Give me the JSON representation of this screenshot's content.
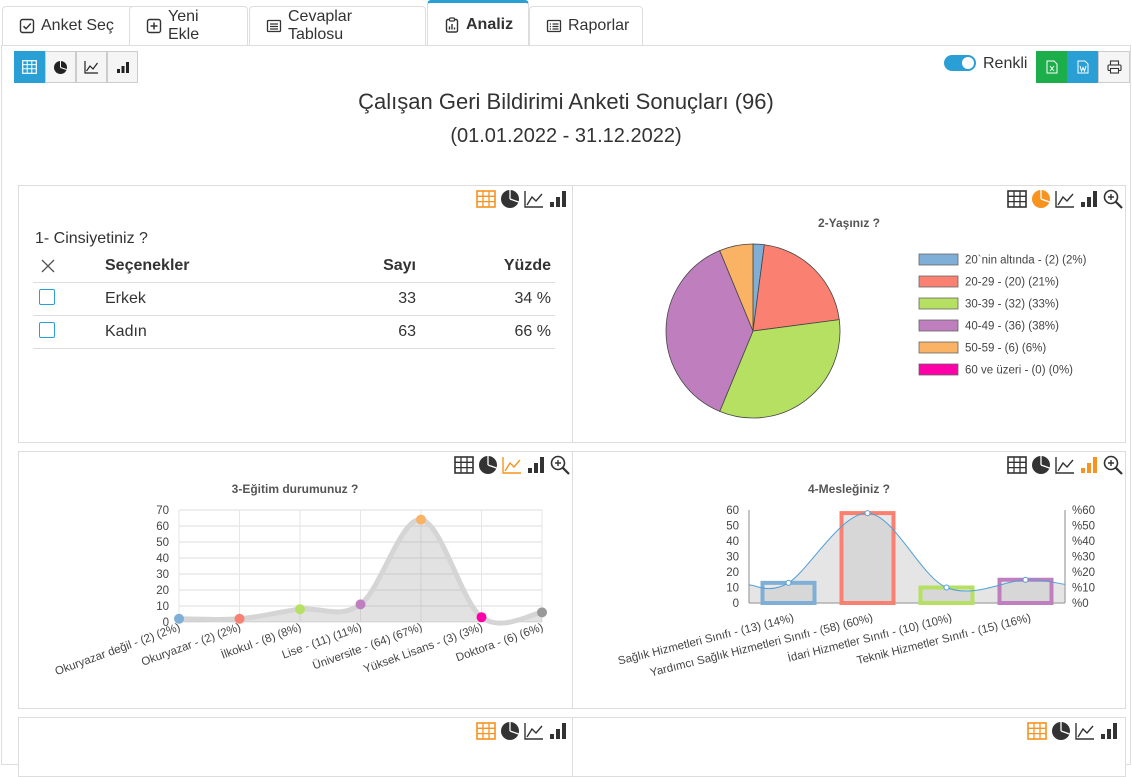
{
  "tabs": [
    {
      "label": "Anket Seç",
      "icon": "check-square-icon"
    },
    {
      "label": "Yeni Ekle",
      "icon": "plus-square-icon"
    },
    {
      "label": "Cevaplar Tablosu",
      "icon": "list-icon"
    },
    {
      "label": "Analiz",
      "icon": "clipboard-chart-icon"
    },
    {
      "label": "Raporlar",
      "icon": "report-list-icon"
    }
  ],
  "toolbar": {
    "view_buttons": [
      "table-view-icon",
      "pie-view-icon",
      "line-view-icon",
      "bar-view-icon"
    ],
    "colorful_label": "Renkli",
    "export_buttons": [
      "excel-icon",
      "word-icon",
      "print-icon"
    ]
  },
  "colors": {
    "accent": "#2a9fd6",
    "orange": "#f7931e",
    "excel": "#1cae4a"
  },
  "header": {
    "title": "Çalışan Geri Bildirimi Anketi Sonuçları (96)",
    "date_range": "(01.01.2022 - 31.12.2022)"
  },
  "q1": {
    "question": "1- Cinsiyetiniz ?",
    "columns": {
      "options": "Seçenekler",
      "count": "Sayı",
      "percent": "Yüzde"
    },
    "rows": [
      {
        "option": "Erkek",
        "count": "33",
        "percent": "34 %"
      },
      {
        "option": "Kadın",
        "count": "63",
        "percent": "66 %"
      }
    ]
  },
  "chart_data": [
    {
      "type": "pie",
      "title": "2-Yaşınız ?",
      "categories": [
        "20`nin altında",
        "20-29",
        "30-39",
        "40-49",
        "50-59",
        "60 ve üzeri"
      ],
      "values": [
        2,
        20,
        32,
        36,
        6,
        0
      ],
      "legend": [
        "20`nin altında - (2) (2%)",
        "20-29 - (20) (21%)",
        "30-39 - (32) (33%)",
        "40-49 - (36) (38%)",
        "50-59 - (6) (6%)",
        "60 ve üzeri - (0) (0%)"
      ],
      "colors": [
        "#7fafd6",
        "#fa8071",
        "#b5e061",
        "#bf7fbf",
        "#fab264",
        "#ff00a8"
      ],
      "legend_position": "right"
    },
    {
      "type": "area",
      "title": "3-Eğitim durumunuz ?",
      "categories": [
        "Okuryazar değil - (2) (2%)",
        "Okuryazar - (2) (2%)",
        "İlkokul - (8) (8%)",
        "Lise - (11) (11%)",
        "Üniversite - (64) (67%)",
        "Yüksek Lisans - (3) (3%)",
        "Doktora - (6) (6%)"
      ],
      "values": [
        2,
        2,
        8,
        11,
        64,
        3,
        6
      ],
      "colors": [
        "#7fafd6",
        "#fa8071",
        "#b5e061",
        "#bf7fbf",
        "#fab264",
        "#ff00a8",
        "#999999"
      ],
      "ylim": [
        0,
        70
      ],
      "yticks": [
        0,
        10,
        20,
        30,
        40,
        50,
        60,
        70
      ],
      "grid": true
    },
    {
      "type": "bar",
      "title": "4-Mesleğiniz ?",
      "categories": [
        "Sağlık Hizmetleri Sınıfı - (13) (14%)",
        "Yardımcı Sağlık Hizmetleri Sınıfı - (58) (60%)",
        "İdari Hizmetler Sınıfı - (10) (10%)",
        "Teknik Hizmetler Sınıfı - (15) (16%)"
      ],
      "values": [
        13,
        58,
        10,
        15
      ],
      "percent_values": [
        14,
        60,
        10,
        16
      ],
      "colors": [
        "#7fafd6",
        "#fa8071",
        "#b5e061",
        "#bf7fbf"
      ],
      "ylim": [
        0,
        60
      ],
      "yticks": [
        0,
        10,
        20,
        30,
        40,
        50,
        60
      ],
      "y2ticks": [
        "%0",
        "%10",
        "%20",
        "%30",
        "%40",
        "%50",
        "%60"
      ],
      "grid": false
    }
  ]
}
